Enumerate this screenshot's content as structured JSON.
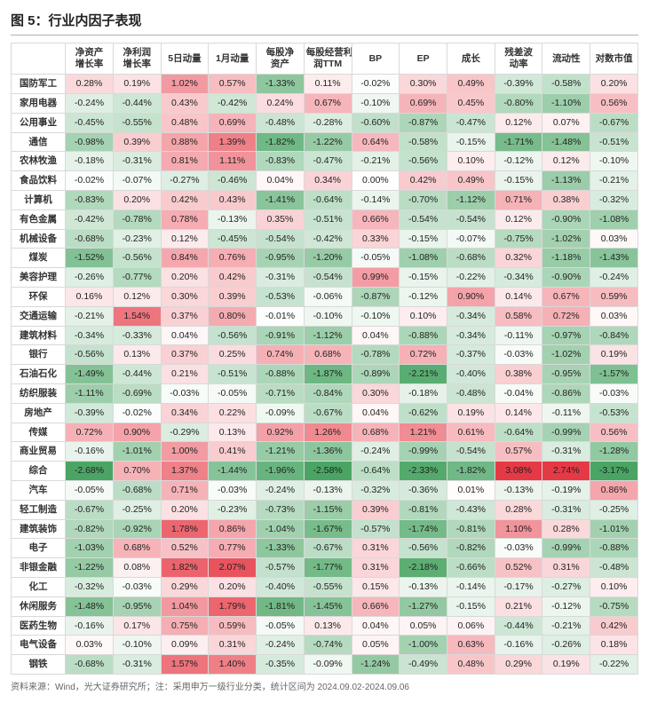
{
  "title": "图 5：行业内因子表现",
  "footnote": "资料来源：Wind，光大证券研究所；注：采用申万一级行业分类，统计区间为 2024.09.02-2024.09.06",
  "columns": [
    "净资产增长率",
    "净利润增长率",
    "5日动量",
    "1月动量",
    "每股净资产",
    "每股经营利润TTM",
    "BP",
    "EP",
    "成长",
    "残差波动率",
    "流动性",
    "对数市值"
  ],
  "rows": [
    "国防军工",
    "家用电器",
    "公用事业",
    "通信",
    "农林牧渔",
    "食品饮料",
    "计算机",
    "有色金属",
    "机械设备",
    "煤炭",
    "美容护理",
    "环保",
    "交通运输",
    "建筑材料",
    "银行",
    "石油石化",
    "纺织服装",
    "房地产",
    "传媒",
    "商业贸易",
    "综合",
    "汽车",
    "轻工制造",
    "建筑装饰",
    "电子",
    "非银金融",
    "化工",
    "休闲服务",
    "医药生物",
    "电气设备",
    "钢铁"
  ],
  "data": [
    [
      0.28,
      0.19,
      1.02,
      0.57,
      -1.33,
      0.11,
      -0.02,
      0.3,
      0.49,
      -0.39,
      -0.58,
      0.2
    ],
    [
      -0.24,
      -0.44,
      0.43,
      -0.42,
      0.24,
      0.67,
      -0.1,
      0.69,
      0.45,
      -0.8,
      -1.1,
      0.56
    ],
    [
      -0.45,
      -0.55,
      0.48,
      0.69,
      -0.48,
      -0.28,
      -0.6,
      -0.87,
      -0.47,
      0.12,
      0.07,
      -0.67
    ],
    [
      -0.98,
      0.39,
      0.88,
      1.39,
      -1.82,
      -1.22,
      0.64,
      -0.58,
      -0.15,
      -1.71,
      -1.48,
      -0.51
    ],
    [
      -0.18,
      -0.31,
      0.81,
      1.11,
      -0.83,
      -0.47,
      -0.21,
      -0.56,
      0.1,
      -0.12,
      0.12,
      -0.1
    ],
    [
      -0.02,
      -0.07,
      -0.27,
      -0.46,
      0.04,
      0.34,
      0.0,
      0.42,
      0.49,
      -0.15,
      -1.13,
      -0.21
    ],
    [
      -0.83,
      0.2,
      0.42,
      0.43,
      -1.41,
      -0.64,
      -0.14,
      -0.7,
      -1.12,
      0.71,
      0.38,
      -0.32
    ],
    [
      -0.42,
      -0.78,
      0.78,
      -0.13,
      0.35,
      -0.51,
      0.66,
      -0.54,
      -0.54,
      0.12,
      -0.9,
      -1.08
    ],
    [
      -0.68,
      -0.23,
      0.12,
      -0.45,
      -0.54,
      -0.42,
      0.33,
      -0.15,
      -0.07,
      -0.75,
      -1.02,
      0.03
    ],
    [
      -1.52,
      -0.56,
      0.84,
      0.76,
      -0.95,
      -1.2,
      -0.05,
      -1.08,
      -0.68,
      0.32,
      -1.18,
      -1.43
    ],
    [
      -0.26,
      -0.77,
      0.2,
      0.42,
      -0.31,
      -0.54,
      0.99,
      -0.15,
      -0.22,
      -0.34,
      -0.9,
      -0.24
    ],
    [
      0.16,
      0.12,
      0.3,
      0.39,
      -0.53,
      -0.06,
      -0.87,
      -0.12,
      0.9,
      0.14,
      0.67,
      0.59
    ],
    [
      -0.21,
      1.54,
      0.37,
      0.8,
      -0.01,
      -0.1,
      -0.1,
      0.1,
      -0.34,
      0.58,
      0.72,
      0.03
    ],
    [
      -0.34,
      -0.33,
      0.04,
      -0.56,
      -0.91,
      -1.12,
      0.04,
      -0.88,
      -0.34,
      -0.11,
      -0.97,
      -0.84
    ],
    [
      -0.56,
      0.13,
      0.37,
      0.25,
      0.74,
      0.68,
      -0.78,
      0.72,
      -0.37,
      -0.03,
      -1.02,
      0.19
    ],
    [
      -1.49,
      -0.44,
      0.21,
      -0.51,
      -0.88,
      -1.87,
      -0.89,
      -2.21,
      -0.4,
      0.38,
      -0.95,
      -1.57
    ],
    [
      -1.11,
      -0.69,
      -0.03,
      -0.05,
      -0.71,
      -0.84,
      0.3,
      -0.18,
      -0.48,
      -0.04,
      -0.86,
      -0.03
    ],
    [
      -0.39,
      -0.02,
      0.34,
      0.22,
      -0.09,
      -0.67,
      0.04,
      -0.62,
      0.19,
      0.14,
      -0.11,
      -0.53
    ],
    [
      0.72,
      0.9,
      -0.29,
      0.13,
      0.92,
      1.26,
      0.68,
      1.21,
      0.61,
      -0.64,
      -0.99,
      0.56
    ],
    [
      -0.16,
      -1.01,
      1.0,
      0.41,
      -1.21,
      -1.36,
      -0.24,
      -0.99,
      -0.54,
      0.57,
      -0.31,
      -1.28
    ],
    [
      -2.68,
      0.7,
      1.37,
      -1.44,
      -1.96,
      -2.58,
      -0.64,
      -2.33,
      -1.82,
      3.08,
      2.74,
      -3.17
    ],
    [
      -0.05,
      -0.68,
      0.71,
      -0.03,
      -0.24,
      -0.13,
      -0.32,
      -0.36,
      0.01,
      -0.13,
      -0.19,
      0.86
    ],
    [
      -0.67,
      -0.25,
      0.2,
      -0.23,
      -0.73,
      -1.15,
      0.39,
      -0.81,
      -0.43,
      0.28,
      -0.31,
      -0.25
    ],
    [
      -0.82,
      -0.92,
      1.78,
      0.86,
      -1.04,
      -1.67,
      -0.57,
      -1.74,
      -0.81,
      1.1,
      0.28,
      -1.01
    ],
    [
      -1.03,
      0.68,
      0.52,
      0.77,
      -1.33,
      -0.67,
      0.31,
      -0.56,
      -0.82,
      -0.03,
      -0.99,
      -0.88
    ],
    [
      -1.22,
      0.08,
      1.82,
      2.07,
      -0.57,
      -1.77,
      0.31,
      -2.18,
      -0.66,
      0.52,
      0.31,
      -0.48
    ],
    [
      -0.32,
      -0.03,
      0.29,
      0.2,
      -0.4,
      -0.55,
      0.15,
      -0.13,
      -0.14,
      -0.17,
      -0.27,
      0.1
    ],
    [
      -1.48,
      -0.95,
      1.04,
      1.79,
      -1.81,
      -1.45,
      0.66,
      -1.27,
      -0.15,
      0.21,
      -0.12,
      -0.75
    ],
    [
      -0.16,
      0.17,
      0.75,
      0.59,
      -0.05,
      0.13,
      0.04,
      0.05,
      0.06,
      -0.44,
      -0.21,
      0.42
    ],
    [
      0.03,
      -0.1,
      0.09,
      0.31,
      -0.24,
      -0.74,
      0.05,
      -1.0,
      0.63,
      -0.16,
      -0.26,
      0.18
    ],
    [
      -0.68,
      -0.31,
      1.57,
      1.4,
      -0.35,
      -0.09,
      -1.24,
      -0.49,
      0.48,
      0.29,
      0.19,
      -0.22
    ]
  ],
  "heatmap": {
    "neg_color": "#4aa564",
    "pos_color": "#e63946",
    "neutral_color": "#ffffff",
    "clip": 2.5
  }
}
